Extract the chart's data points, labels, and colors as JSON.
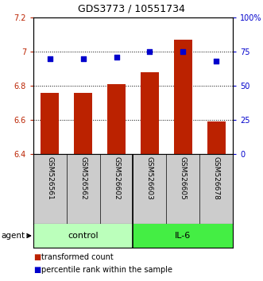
{
  "title": "GDS3773 / 10551734",
  "samples": [
    "GSM526561",
    "GSM526562",
    "GSM526602",
    "GSM526603",
    "GSM526605",
    "GSM526678"
  ],
  "bar_values": [
    6.76,
    6.76,
    6.81,
    6.88,
    7.07,
    6.59
  ],
  "dot_values": [
    70,
    70,
    71,
    75,
    75,
    68
  ],
  "bar_color": "#bb2200",
  "dot_color": "#0000cc",
  "ylim_left": [
    6.4,
    7.2
  ],
  "ylim_right": [
    0,
    100
  ],
  "yticks_left": [
    6.4,
    6.6,
    6.8,
    7.0,
    7.2
  ],
  "ytick_labels_left": [
    "6.4",
    "6.6",
    "6.8",
    "7",
    "7.2"
  ],
  "yticks_right": [
    0,
    25,
    50,
    75,
    100
  ],
  "ytick_labels_right": [
    "0",
    "25",
    "50",
    "75",
    "100%"
  ],
  "groups": [
    {
      "label": "control",
      "color": "#bbffbb"
    },
    {
      "label": "IL-6",
      "color": "#44ee44"
    }
  ],
  "agent_label": "agent",
  "legend_bar_label": "transformed count",
  "legend_dot_label": "percentile rank within the sample",
  "grid_lines": [
    6.6,
    6.8,
    7.0
  ],
  "sample_bg": "#cccccc",
  "background_color": "#ffffff"
}
